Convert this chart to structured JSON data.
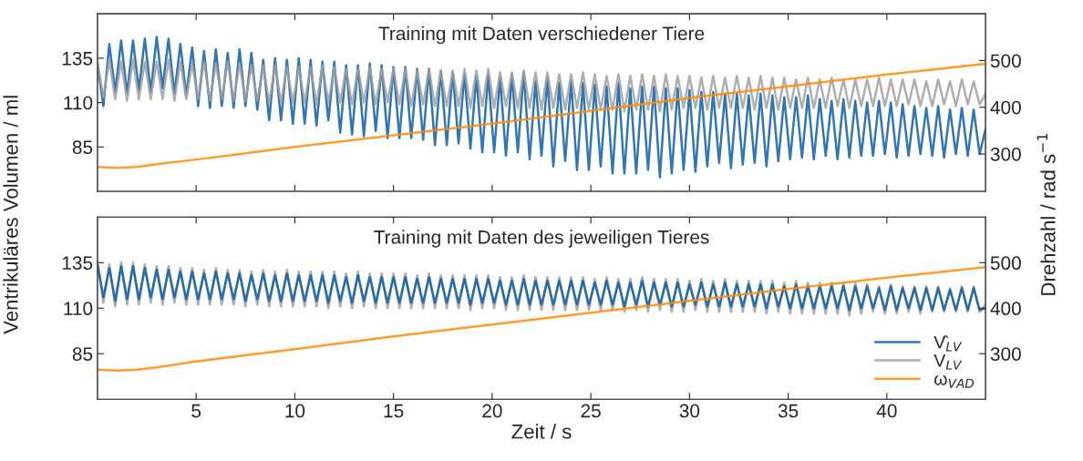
{
  "chart_data": [
    {
      "type": "line",
      "title": "Training mit Daten verschiedener Tiere",
      "ylabel": "Ventrikuläres Volumen / ml",
      "y2label": "Drehzahl / rad s$^{−1}$",
      "xlim": [
        0,
        45
      ],
      "xticks": [
        5,
        10,
        15,
        20,
        25,
        30,
        35,
        40
      ],
      "ylim": [
        60,
        160
      ],
      "yticks": [
        85,
        110,
        135
      ],
      "y2lim": [
        220,
        600
      ],
      "y2ticks": [
        300,
        400,
        500
      ],
      "tick_labels": "y",
      "line_style": "solid",
      "x": [
        0,
        0.3,
        0.6,
        0.9,
        1.2,
        1.5,
        1.8,
        2.1,
        2.4,
        2.7,
        3,
        3.3,
        3.6,
        3.9,
        4.2,
        4.5,
        4.8,
        5.1,
        5.4,
        5.7,
        6,
        6.3,
        6.6,
        6.9,
        7.2,
        7.5,
        7.8,
        8.1,
        8.4,
        8.7,
        9,
        9.3,
        9.6,
        9.9,
        10.2,
        10.5,
        10.8,
        11.1,
        11.4,
        11.7,
        12,
        12.3,
        12.6,
        12.9,
        13.2,
        13.5,
        13.8,
        14.1,
        14.4,
        14.7,
        15,
        15.3,
        15.6,
        15.9,
        16.2,
        16.5,
        16.8,
        17.1,
        17.4,
        17.7,
        18,
        18.3,
        18.6,
        18.9,
        19.2,
        19.5,
        19.8,
        20.1,
        20.4,
        20.7,
        21,
        21.3,
        21.6,
        21.9,
        22.2,
        22.5,
        22.8,
        23.1,
        23.4,
        23.7,
        24,
        24.3,
        24.6,
        24.9,
        25.2,
        25.5,
        25.8,
        26.1,
        26.4,
        26.7,
        27,
        27.3,
        27.6,
        27.9,
        28.2,
        28.5,
        28.8,
        29.1,
        29.4,
        29.7,
        30,
        30.3,
        30.6,
        30.9,
        31.2,
        31.5,
        31.8,
        32.1,
        32.4,
        32.7,
        33,
        33.3,
        33.6,
        33.9,
        34.2,
        34.5,
        34.8,
        35.1,
        35.4,
        35.7,
        36,
        36.3,
        36.6,
        36.9,
        37.2,
        37.5,
        37.8,
        38.1,
        38.4,
        38.7,
        39,
        39.3,
        39.6,
        39.9,
        40.2,
        40.5,
        40.8,
        41.1,
        41.4,
        41.7,
        42,
        42.3,
        42.6,
        42.9,
        43.2,
        43.5,
        43.8,
        44.1,
        44.4,
        44.7,
        45
      ],
      "series": [
        {
          "color": "#a0a0a0",
          "values": [
            133,
            113,
            134,
            112,
            133,
            111,
            134,
            112,
            133,
            112,
            133,
            112,
            134,
            111,
            133,
            112,
            132,
            112,
            133,
            111,
            132,
            112,
            133,
            111,
            132,
            111,
            131,
            111,
            131,
            110,
            131,
            110,
            130,
            110,
            130,
            110,
            130,
            109,
            131,
            110,
            130,
            110,
            129,
            109,
            129,
            110,
            130,
            109,
            129,
            110,
            129,
            109,
            129,
            108,
            128,
            109,
            129,
            108,
            128,
            108,
            128,
            108,
            129,
            107,
            128,
            108,
            129,
            107,
            127,
            108,
            127,
            107,
            128,
            107,
            127,
            106,
            127,
            107,
            126,
            106,
            126,
            107,
            127,
            106,
            126,
            106,
            125,
            106,
            126,
            105,
            125,
            106,
            126,
            106,
            125,
            105,
            126,
            106,
            125,
            107,
            125,
            107,
            124,
            106,
            125,
            107,
            124,
            107,
            125,
            107,
            124,
            106,
            125,
            107,
            124,
            106,
            124,
            107,
            123,
            107,
            124,
            107,
            123,
            107,
            124,
            108,
            123,
            107,
            123,
            108,
            123,
            108,
            124,
            108,
            123,
            108,
            123,
            109,
            123,
            108,
            122,
            108,
            123,
            109,
            122,
            108,
            123,
            109,
            122,
            109,
            115
          ]
        },
        {
          "color": "#0b5ea8",
          "values": [
            132,
            108,
            143,
            116,
            145,
            115,
            145,
            117,
            146,
            116,
            147,
            118,
            146,
            115,
            143,
            114,
            141,
            108,
            139,
            107,
            140,
            108,
            138,
            107,
            140,
            108,
            138,
            106,
            134,
            100,
            135,
            100,
            134,
            98,
            135,
            98,
            134,
            97,
            133,
            100,
            133,
            93,
            131,
            92,
            131,
            91,
            132,
            94,
            131,
            90,
            130,
            90,
            130,
            90,
            129,
            89,
            129,
            86,
            128,
            86,
            127,
            87,
            126,
            84,
            125,
            82,
            126,
            82,
            124,
            80,
            126,
            82,
            127,
            78,
            122,
            80,
            124,
            74,
            121,
            77,
            122,
            72,
            121,
            72,
            120,
            74,
            119,
            70,
            121,
            70,
            118,
            70,
            119,
            72,
            119,
            68,
            118,
            70,
            118,
            72,
            117,
            71,
            116,
            74,
            116,
            76,
            115,
            73,
            115,
            75,
            114,
            76,
            115,
            74,
            114,
            77,
            113,
            78,
            113,
            79,
            114,
            78,
            112,
            80,
            111,
            78,
            112,
            79,
            111,
            80,
            110,
            80,
            111,
            81,
            110,
            79,
            109,
            80,
            108,
            81,
            107,
            80,
            108,
            79,
            106,
            81,
            107,
            80,
            106,
            81,
            95
          ]
        },
        {
          "color": "#ff8c0a",
          "axis": "y2",
          "x": [
            0,
            1,
            2,
            3,
            5,
            10,
            15,
            20,
            25,
            30,
            35,
            40,
            45
          ],
          "values": [
            272,
            270,
            272,
            278,
            288,
            315,
            340,
            365,
            392,
            420,
            445,
            470,
            493
          ]
        }
      ]
    },
    {
      "type": "line",
      "title": "Training mit Daten des jeweiligen Tieres",
      "xlabel": "Zeit / s",
      "xlim": [
        0,
        45
      ],
      "xticks": [
        5,
        10,
        15,
        20,
        25,
        30,
        35,
        40
      ],
      "ylim": [
        60,
        160
      ],
      "yticks": [
        85,
        110,
        135
      ],
      "y2lim": [
        200,
        600
      ],
      "y2ticks": [
        300,
        400,
        500
      ],
      "legend": "bottom right",
      "line_style": "solid",
      "x": [
        0,
        0.3,
        0.6,
        0.9,
        1.2,
        1.5,
        1.8,
        2.1,
        2.4,
        2.7,
        3,
        3.3,
        3.6,
        3.9,
        4.2,
        4.5,
        4.8,
        5.1,
        5.4,
        5.7,
        6,
        6.3,
        6.6,
        6.9,
        7.2,
        7.5,
        7.8,
        8.1,
        8.4,
        8.7,
        9,
        9.3,
        9.6,
        9.9,
        10.2,
        10.5,
        10.8,
        11.1,
        11.4,
        11.7,
        12,
        12.3,
        12.6,
        12.9,
        13.2,
        13.5,
        13.8,
        14.1,
        14.4,
        14.7,
        15,
        15.3,
        15.6,
        15.9,
        16.2,
        16.5,
        16.8,
        17.1,
        17.4,
        17.7,
        18,
        18.3,
        18.6,
        18.9,
        19.2,
        19.5,
        19.8,
        20.1,
        20.4,
        20.7,
        21,
        21.3,
        21.6,
        21.9,
        22.2,
        22.5,
        22.8,
        23.1,
        23.4,
        23.7,
        24,
        24.3,
        24.6,
        24.9,
        25.2,
        25.5,
        25.8,
        26.1,
        26.4,
        26.7,
        27,
        27.3,
        27.6,
        27.9,
        28.2,
        28.5,
        28.8,
        29.1,
        29.4,
        29.7,
        30,
        30.3,
        30.6,
        30.9,
        31.2,
        31.5,
        31.8,
        32.1,
        32.4,
        32.7,
        33,
        33.3,
        33.6,
        33.9,
        34.2,
        34.5,
        34.8,
        35.1,
        35.4,
        35.7,
        36,
        36.3,
        36.6,
        36.9,
        37.2,
        37.5,
        37.8,
        38.1,
        38.4,
        38.7,
        39,
        39.3,
        39.6,
        39.9,
        40.2,
        40.5,
        40.8,
        41.1,
        41.4,
        41.7,
        42,
        42.3,
        42.6,
        42.9,
        43.2,
        43.5,
        43.8,
        44.1,
        44.4,
        44.7,
        45
      ],
      "series": [
        {
          "name": "V̂$_{LV}$",
          "color": "#0b5ea8",
          "values": [
            134,
            116,
            132,
            114,
            133,
            115,
            133,
            115,
            132,
            116,
            131,
            115,
            131,
            116,
            130,
            115,
            130,
            115,
            129,
            115,
            130,
            115,
            129,
            115,
            129,
            114,
            128,
            115,
            129,
            114,
            128,
            114,
            129,
            114,
            128,
            114,
            128,
            114,
            128,
            113,
            128,
            114,
            127,
            113,
            128,
            114,
            127,
            113,
            127,
            113,
            127,
            113,
            127,
            113,
            126,
            113,
            127,
            113,
            126,
            113,
            126,
            113,
            126,
            112,
            126,
            113,
            126,
            113,
            125,
            112,
            125,
            112,
            126,
            112,
            125,
            112,
            125,
            112,
            125,
            112,
            125,
            112,
            125,
            112,
            124,
            112,
            125,
            112,
            124,
            111,
            124,
            112,
            125,
            111,
            124,
            112,
            124,
            111,
            124,
            111,
            123,
            112,
            124,
            111,
            123,
            111,
            124,
            111,
            123,
            111,
            123,
            111,
            123,
            110,
            123,
            111,
            122,
            110,
            123,
            110,
            122,
            110,
            122,
            110,
            122,
            110,
            122,
            109,
            122,
            110,
            122,
            110,
            121,
            109,
            122,
            109,
            121,
            110,
            121,
            109,
            121,
            109,
            121,
            109,
            120,
            109,
            121,
            109,
            121,
            109,
            110
          ]
        },
        {
          "name": "V$_{LV}$",
          "color": "#a0a0a0",
          "values": [
            136,
            113,
            134,
            111,
            135,
            112,
            135,
            112,
            134,
            113,
            133,
            112,
            133,
            113,
            132,
            112,
            132,
            112,
            131,
            112,
            132,
            112,
            131,
            112,
            131,
            111,
            130,
            112,
            131,
            111,
            130,
            111,
            131,
            111,
            130,
            111,
            130,
            111,
            130,
            110,
            130,
            111,
            129,
            110,
            130,
            111,
            129,
            110,
            129,
            110,
            129,
            110,
            129,
            110,
            128,
            110,
            129,
            110,
            128,
            110,
            128,
            110,
            128,
            109,
            128,
            110,
            128,
            110,
            127,
            109,
            127,
            109,
            128,
            109,
            127,
            109,
            127,
            109,
            127,
            109,
            127,
            109,
            127,
            109,
            126,
            109,
            127,
            109,
            126,
            108,
            126,
            109,
            127,
            108,
            126,
            109,
            126,
            108,
            126,
            108,
            125,
            109,
            126,
            108,
            125,
            108,
            126,
            108,
            125,
            108,
            125,
            108,
            125,
            107,
            125,
            108,
            124,
            107,
            125,
            107,
            124,
            107,
            124,
            107,
            124,
            107,
            124,
            106,
            124,
            107,
            123,
            108,
            122,
            107,
            123,
            107,
            122,
            108,
            122,
            107,
            122,
            108,
            122,
            108,
            121,
            108,
            122,
            108,
            122,
            108,
            112
          ]
        },
        {
          "name": "ω$_{VAD}$",
          "color": "#ff8c0a",
          "axis": "y2",
          "x": [
            0,
            1,
            2,
            3,
            5,
            10,
            15,
            20,
            25,
            30,
            35,
            40,
            45
          ],
          "values": [
            265,
            263,
            265,
            270,
            283,
            310,
            338,
            364,
            390,
            416,
            442,
            467,
            490
          ]
        }
      ]
    }
  ]
}
